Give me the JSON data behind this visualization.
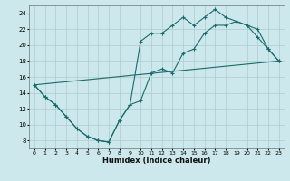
{
  "xlabel": "Humidex (Indice chaleur)",
  "background_color": "#cce8ec",
  "grid_color": "#aacccc",
  "line_color": "#1a6b6b",
  "xlim": [
    -0.5,
    23.5
  ],
  "ylim": [
    7,
    25
  ],
  "xticks": [
    0,
    1,
    2,
    3,
    4,
    5,
    6,
    7,
    8,
    9,
    10,
    11,
    12,
    13,
    14,
    15,
    16,
    17,
    18,
    19,
    20,
    21,
    22,
    23
  ],
  "yticks": [
    8,
    10,
    12,
    14,
    16,
    18,
    20,
    22,
    24
  ],
  "line1_x": [
    0,
    1,
    2,
    3,
    4,
    5,
    6,
    7,
    8,
    9,
    10,
    11,
    12,
    13,
    14,
    15,
    16,
    17,
    18,
    19,
    20,
    21,
    22,
    23
  ],
  "line1_y": [
    15,
    13.5,
    12.5,
    11,
    9.5,
    8.5,
    8,
    7.8,
    10.5,
    12.5,
    13,
    16.5,
    17,
    16.5,
    19.0,
    19.5,
    21.5,
    22.5,
    22.5,
    23,
    22.5,
    22,
    19.5,
    18
  ],
  "line2_x": [
    0,
    1,
    2,
    3,
    4,
    5,
    6,
    7,
    8,
    9,
    10,
    11,
    12,
    13,
    14,
    15,
    16,
    17,
    18,
    19,
    20,
    21,
    22,
    23
  ],
  "line2_y": [
    15,
    13.5,
    12.5,
    11,
    9.5,
    8.5,
    8,
    7.8,
    10.5,
    12.5,
    20.5,
    21.5,
    21.5,
    22.5,
    23.5,
    22.5,
    23.5,
    24.5,
    23.5,
    23,
    22.5,
    21.0,
    19.5,
    18
  ],
  "line3_x": [
    0,
    23
  ],
  "line3_y": [
    15,
    18
  ]
}
